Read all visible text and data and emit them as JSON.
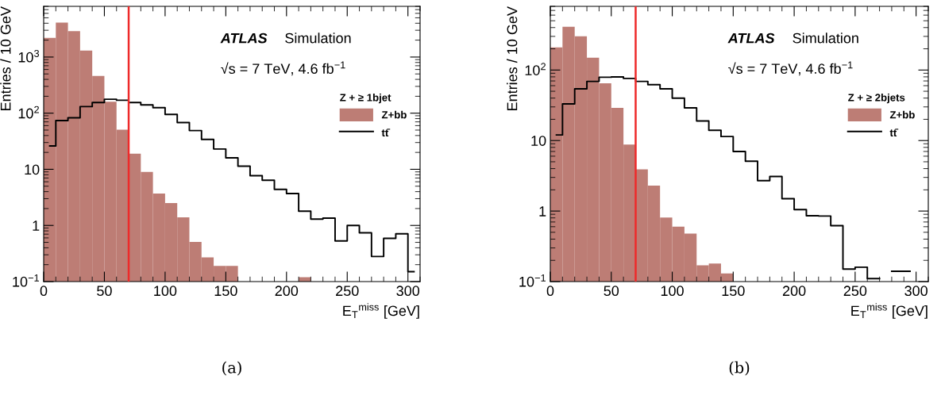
{
  "chart_data": [
    {
      "type": "histogram",
      "bins": [
        0,
        10,
        20,
        30,
        40,
        50,
        60,
        70,
        80,
        90,
        100,
        110,
        120,
        130,
        140,
        150,
        160,
        170,
        180,
        190,
        200,
        210,
        220,
        230,
        240,
        250,
        260,
        270,
        280,
        290,
        300,
        310
      ],
      "series": [
        {
          "name": "Z+bb",
          "color": "#bd7d75",
          "values": [
            2200,
            4100,
            2900,
            1300,
            460,
            160,
            51,
            19,
            9,
            3.7,
            2.5,
            1.4,
            0.51,
            0.27,
            0.19,
            0.19,
            null,
            null,
            null,
            null,
            null,
            0.12,
            null,
            null,
            null,
            null,
            null,
            null,
            null,
            null,
            null
          ]
        },
        {
          "name": "tt̄",
          "type": "step",
          "color": "#000000",
          "x": [
            5,
            15,
            25,
            35,
            45,
            55,
            65,
            75,
            85,
            95,
            105,
            115,
            125,
            135,
            145,
            155,
            165,
            175,
            185,
            195,
            205,
            215,
            225,
            235,
            245,
            255,
            265,
            275,
            285,
            295,
            305
          ],
          "values": [
            26,
            74,
            83,
            131,
            155,
            177,
            170,
            155,
            140,
            125,
            95,
            68,
            49,
            34,
            23,
            16,
            11.4,
            7.7,
            6.4,
            4.4,
            3.7,
            1.8,
            1.3,
            1.35,
            0.53,
            1.0,
            0.74,
            0.28,
            0.59,
            0.71,
            0.15
          ]
        }
      ],
      "xlim": [
        0,
        310
      ],
      "xticks": [
        0,
        50,
        100,
        150,
        200,
        250,
        300
      ],
      "log": "y",
      "ylim": [
        0.1,
        8000
      ],
      "yticks": [
        {
          "value": 0.1,
          "label": "10$^{−1}$"
        },
        1,
        10,
        {
          "value": 100,
          "label": "10$^{2}$"
        },
        {
          "value": 1000,
          "label": "10$^{3}$"
        }
      ],
      "xlabel": "E$_{T}$$^{miss}$ [GeV]",
      "ylabel": "Entries / 10 GeV",
      "legend_title": "Z + ≥ 1bjet",
      "legend": "center right",
      "grid": false,
      "ref_lines": [
        {
          "axis": "x",
          "value": 70,
          "color": "#ee2a2a"
        }
      ],
      "annotations": [
        "ATLAS",
        "Simulation",
        "√s = 7 TeV, 4.6 fb$^{−1}$",
        "(a)"
      ]
    },
    {
      "type": "histogram",
      "bins": [
        0,
        10,
        20,
        30,
        40,
        50,
        60,
        70,
        80,
        90,
        100,
        110,
        120,
        130,
        140,
        150,
        160,
        170,
        180,
        190,
        200,
        210,
        220,
        230,
        240,
        250,
        260,
        270,
        280,
        290,
        300,
        310
      ],
      "series": [
        {
          "name": "Z+bb",
          "color": "#bd7d75",
          "values": [
            210,
            410,
            300,
            150,
            65,
            29,
            8.8,
            3.9,
            2.3,
            0.81,
            0.6,
            0.48,
            0.17,
            0.18,
            0.13,
            null,
            null,
            null,
            null,
            null,
            null,
            null,
            null,
            null,
            null,
            null,
            null,
            null,
            null,
            null,
            null
          ]
        },
        {
          "name": "tt̄",
          "type": "step",
          "color": "#000000",
          "x": [
            5,
            15,
            25,
            35,
            45,
            55,
            65,
            75,
            85,
            95,
            105,
            115,
            125,
            135,
            145,
            155,
            165,
            175,
            185,
            195,
            205,
            215,
            225,
            235,
            245,
            255,
            265,
            275,
            285,
            295
          ],
          "values": [
            12,
            33,
            54,
            69,
            79,
            80,
            76,
            69,
            62,
            54,
            40,
            29,
            19,
            14,
            11.4,
            7,
            5.1,
            2.7,
            3.1,
            1.5,
            1.05,
            0.86,
            0.85,
            0.62,
            0.15,
            0.16,
            0.11,
            null,
            0.14,
            0.14
          ]
        }
      ],
      "xlim": [
        0,
        310
      ],
      "xticks": [
        0,
        50,
        100,
        150,
        200,
        250,
        300
      ],
      "log": "y",
      "ylim": [
        0.1,
        800
      ],
      "yticks": [
        {
          "value": 0.1,
          "label": "10$^{−1}$"
        },
        1,
        10,
        {
          "value": 100,
          "label": "10$^{2}$"
        }
      ],
      "xlabel": "E$_{T}$$^{miss}$ [GeV]",
      "ylabel": "Entries / 10 GeV",
      "legend_title": "Z + ≥ 2bjets",
      "legend": "center right",
      "grid": false,
      "ref_lines": [
        {
          "axis": "x",
          "value": 70,
          "color": "#ee2a2a"
        }
      ],
      "annotations": [
        "ATLAS",
        "Simulation",
        "√s = 7 TeV, 4.6 fb$^{−1}$",
        "(b)"
      ]
    }
  ]
}
